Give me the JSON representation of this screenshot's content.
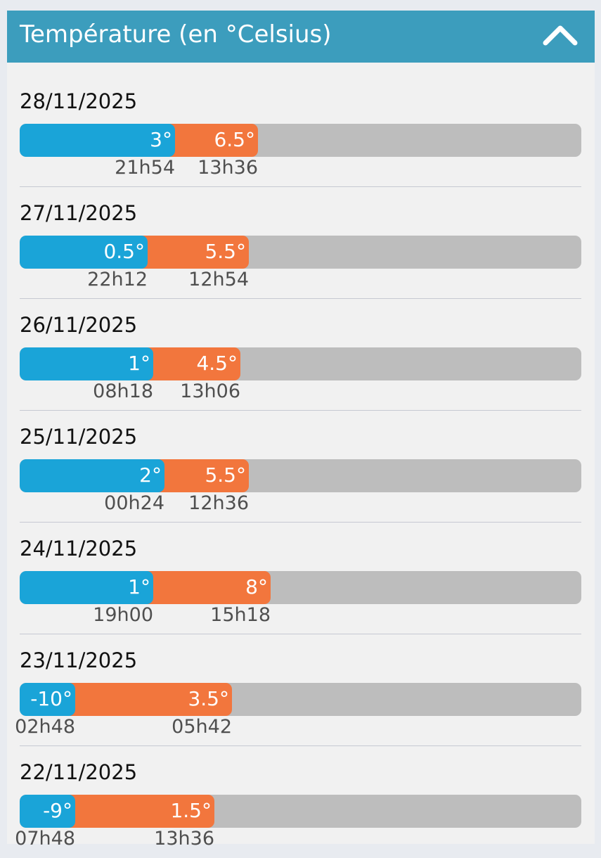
{
  "header": {
    "title": "Température (en °Celsius)",
    "toggle_icon": "chevron-up-icon"
  },
  "scale_note": "bar fill = temperature mapped on track",
  "days": [
    {
      "date": "28/11/2025",
      "min": {
        "value": "3°",
        "time": "21h54"
      },
      "max": {
        "value": "6.5°",
        "time": "13h36"
      }
    },
    {
      "date": "27/11/2025",
      "min": {
        "value": "0.5°",
        "time": "22h12"
      },
      "max": {
        "value": "5.5°",
        "time": "12h54"
      }
    },
    {
      "date": "26/11/2025",
      "min": {
        "value": "1°",
        "time": "08h18"
      },
      "max": {
        "value": "4.5°",
        "time": "13h06"
      }
    },
    {
      "date": "25/11/2025",
      "min": {
        "value": "2°",
        "time": "00h24"
      },
      "max": {
        "value": "5.5°",
        "time": "12h36"
      }
    },
    {
      "date": "24/11/2025",
      "min": {
        "value": "1°",
        "time": "19h00"
      },
      "max": {
        "value": "8°",
        "time": "15h18"
      }
    },
    {
      "date": "23/11/2025",
      "min": {
        "value": "-10°",
        "time": "02h48"
      },
      "max": {
        "value": "3.5°",
        "time": "05h42"
      }
    },
    {
      "date": "22/11/2025",
      "min": {
        "value": "-9°",
        "time": "07h48"
      },
      "max": {
        "value": "1.5°",
        "time": "13h36"
      }
    }
  ],
  "colors": {
    "header": "#3c9dbd",
    "min_bar": "#1aa4d8",
    "max_bar": "#f2763d",
    "track": "#bdbdbd"
  }
}
